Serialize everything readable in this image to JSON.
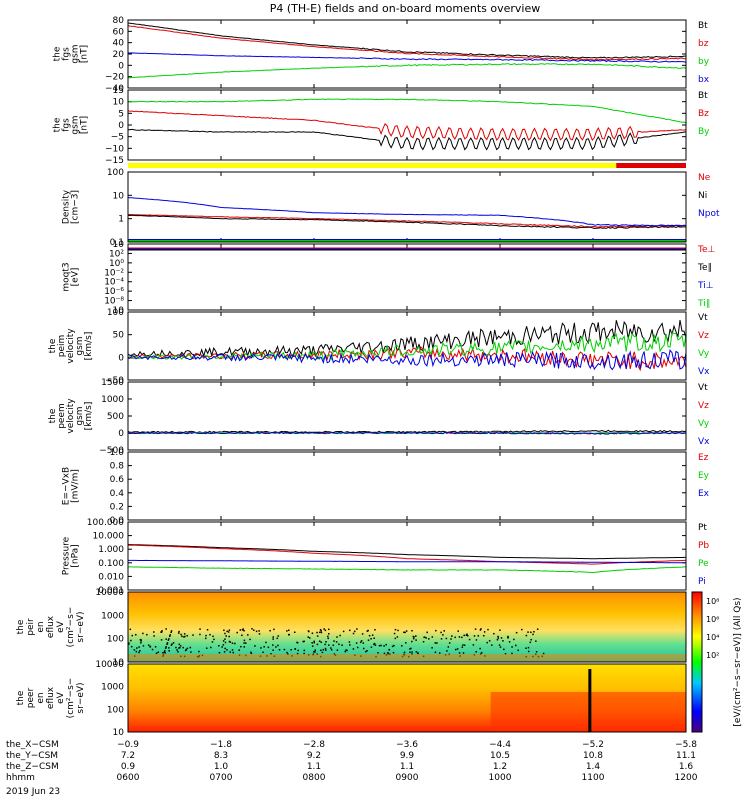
{
  "title": "P4 (TH-E) fields and on-board moments overview",
  "colors": {
    "black": "#000000",
    "red": "#e00000",
    "green": "#00d000",
    "blue": "#0000e0",
    "yellow": "#ffff00"
  },
  "panels": [
    {
      "id": "fgs-gsm-total",
      "ylabel": [
        "the",
        "fgs",
        "gsm",
        "[nT]"
      ],
      "ticks": [
        "80",
        "60",
        "40",
        "20",
        "0",
        "−20",
        "−40"
      ],
      "legend": [
        {
          "t": "Bt",
          "c": "black"
        },
        {
          "t": "bz",
          "c": "red"
        },
        {
          "t": "by",
          "c": "green"
        },
        {
          "t": "bx",
          "c": "blue"
        }
      ]
    },
    {
      "id": "fgs-gsm-angles",
      "ylabel": [
        "the",
        "fgs",
        "gsm",
        "[nT]"
      ],
      "ticks": [
        "15",
        "10",
        "5",
        "0",
        "−5",
        "−10",
        "−15"
      ],
      "legend": [
        {
          "t": "Bt",
          "c": "black"
        },
        {
          "t": "Bz",
          "c": "red"
        },
        {
          "t": "By",
          "c": "green"
        }
      ]
    },
    {
      "id": "density",
      "ylabel": [
        "Density",
        "[cm−3]"
      ],
      "ticks": [
        "100",
        "10",
        "1",
        "0.1"
      ],
      "legend": [
        {
          "t": "Ne",
          "c": "red"
        },
        {
          "t": "Ni",
          "c": "black"
        },
        {
          "t": "Npot",
          "c": "blue"
        }
      ]
    },
    {
      "id": "temperature",
      "ylabel": [
        "moqt3",
        "[eV]"
      ],
      "ticks": [
        "10",
        "10²",
        "10⁰",
        "10⁻²",
        "10⁻⁴",
        "10⁻⁶",
        "10⁻⁸",
        "10"
      ],
      "legend": [
        {
          "t": "Te⊥",
          "c": "red"
        },
        {
          "t": "Te∥",
          "c": "black"
        },
        {
          "t": "Ti⊥",
          "c": "blue"
        },
        {
          "t": "Ti∥",
          "c": "green"
        }
      ]
    },
    {
      "id": "peim-velocity",
      "ylabel": [
        "the",
        "peim",
        "velocity",
        "gsm",
        "[km/s]"
      ],
      "ticks": [
        "100",
        "50",
        "0",
        "−50"
      ],
      "legend": [
        {
          "t": "Vt",
          "c": "black"
        },
        {
          "t": "Vz",
          "c": "red"
        },
        {
          "t": "Vy",
          "c": "green"
        },
        {
          "t": "Vx",
          "c": "blue"
        }
      ]
    },
    {
      "id": "peem-velocity",
      "ylabel": [
        "the",
        "peem",
        "velocity",
        "gsm",
        "[km/s]"
      ],
      "ticks": [
        "1500",
        "1000",
        "500",
        "0",
        "−500"
      ],
      "legend": [
        {
          "t": "Vt",
          "c": "black"
        },
        {
          "t": "Vz",
          "c": "red"
        },
        {
          "t": "Vy",
          "c": "green"
        },
        {
          "t": "Vx",
          "c": "blue"
        }
      ]
    },
    {
      "id": "efield",
      "ylabel": [
        "E=−VxB",
        "[mV/m]"
      ],
      "ticks": [
        "1.0",
        "0.8",
        "0.6",
        "0.4",
        "0.2",
        "0.0"
      ],
      "legend": [
        {
          "t": "Ez",
          "c": "red"
        },
        {
          "t": "Ey",
          "c": "green"
        },
        {
          "t": "Ex",
          "c": "blue"
        }
      ]
    },
    {
      "id": "pressure",
      "ylabel": [
        "Pressure",
        "[nPa]"
      ],
      "ticks": [
        "100.000",
        "10.000",
        "1.000",
        "0.100",
        "0.010",
        "0.001"
      ],
      "legend": [
        {
          "t": "Pt",
          "c": "black"
        },
        {
          "t": "Pb",
          "c": "red"
        },
        {
          "t": "Pe",
          "c": "green"
        },
        {
          "t": "Pi",
          "c": "blue"
        }
      ]
    },
    {
      "id": "peir-spec",
      "ylabel": [
        "the",
        "peir",
        "en",
        "eflux",
        "eV",
        "(cm²−s−",
        "sr−eV)"
      ],
      "ticks": [
        "10000",
        "1000",
        "100",
        "10"
      ],
      "legend": []
    },
    {
      "id": "peer-spec",
      "ylabel": [
        "the",
        "peer",
        "en",
        "eflux",
        "eV",
        "(cm²−s−",
        "sr−eV)"
      ],
      "ticks": [
        "10000",
        "1000",
        "100",
        "10"
      ],
      "legend": []
    }
  ],
  "colorbar": {
    "label": "[eV/(cm²−s−sr−eV)] (All Qs)",
    "ticks_top": [
      "10⁸",
      "10⁶",
      "10⁴",
      "10²"
    ],
    "ticks_bottom": [
      "10⁶",
      "10⁴",
      "10²"
    ]
  },
  "xaxis": {
    "rows": [
      {
        "label": "the_X−CSM",
        "values": [
          "−0.9",
          "−1.8",
          "−2.8",
          "−3.6",
          "−4.4",
          "−5.2",
          "−5.8"
        ]
      },
      {
        "label": "the_Y−CSM",
        "values": [
          "7.2",
          "8.3",
          "9.2",
          "9.9",
          "10.5",
          "10.8",
          "11.1"
        ]
      },
      {
        "label": "the_Z−CSM",
        "values": [
          "0.9",
          "1.0",
          "1.1",
          "1.1",
          "1.2",
          "1.4",
          "1.6"
        ]
      },
      {
        "label": "hhmm",
        "values": [
          "0600",
          "0700",
          "0800",
          "0900",
          "1000",
          "1100",
          "1200"
        ]
      }
    ],
    "date": "2019 Jun 23"
  },
  "chart_data": {
    "type": "line",
    "title": "P4 (TH-E) fields and on-board moments overview",
    "x": [
      "0600",
      "0700",
      "0800",
      "0900",
      "1000",
      "1100",
      "1200"
    ],
    "xlabel": "hhmm",
    "panels": [
      {
        "name": "fgs gsm",
        "ylim": [
          -40,
          80
        ],
        "series": [
          {
            "name": "Bt",
            "values": [
              75,
              52,
              36,
              24,
              18,
              13,
              16
            ]
          },
          {
            "name": "bz",
            "values": [
              70,
              48,
              33,
              21,
              15,
              10,
              12
            ]
          },
          {
            "name": "by",
            "values": [
              -22,
              -12,
              -5,
              0,
              2,
              2,
              -5
            ]
          },
          {
            "name": "bx",
            "values": [
              22,
              17,
              14,
              11,
              10,
              8,
              6
            ]
          }
        ]
      },
      {
        "name": "fgs gsm",
        "ylim": [
          -15,
          15
        ],
        "series": [
          {
            "name": "Bt",
            "values": [
              -2,
              -3,
              -3,
              -8,
              -8,
              -8,
              -3
            ]
          },
          {
            "name": "Bz",
            "values": [
              6,
              4,
              2,
              -3,
              -4,
              -4,
              -2
            ]
          },
          {
            "name": "By",
            "values": [
              10,
              10,
              11,
              11,
              10,
              8,
              1
            ]
          }
        ]
      },
      {
        "name": "Density",
        "ylim": [
          0.1,
          100
        ],
        "series": [
          {
            "name": "Ne",
            "values": [
              1.5,
              1.2,
              1.0,
              0.8,
              0.6,
              0.45,
              0.5
            ]
          },
          {
            "name": "Ni",
            "values": [
              1.4,
              1.0,
              0.9,
              0.7,
              0.5,
              0.4,
              0.45
            ]
          },
          {
            "name": "Npot",
            "values": [
              8,
              3,
              1.8,
              1.5,
              1.4,
              0.55,
              0.5
            ]
          }
        ]
      },
      {
        "name": "peim velocity",
        "ylim": [
          -50,
          100
        ],
        "series": [
          {
            "name": "Vt",
            "values": [
              8,
              12,
              15,
              30,
              45,
              55,
              60
            ]
          },
          {
            "name": "Vz",
            "values": [
              2,
              3,
              5,
              10,
              5,
              -5,
              -10
            ]
          },
          {
            "name": "Vy",
            "values": [
              0,
              2,
              4,
              15,
              20,
              30,
              35
            ]
          },
          {
            "name": "Vx",
            "values": [
              0,
              0,
              -2,
              -5,
              -5,
              -8,
              -5
            ]
          }
        ]
      },
      {
        "name": "peem velocity",
        "ylim": [
          -500,
          1500
        ],
        "series": [
          {
            "name": "Vt",
            "values": [
              30,
              30,
              30,
              30,
              40,
              60,
              50
            ]
          },
          {
            "name": "Vz",
            "values": [
              0,
              0,
              0,
              0,
              0,
              -10,
              0
            ]
          },
          {
            "name": "Vy",
            "values": [
              0,
              0,
              0,
              0,
              0,
              0,
              0
            ]
          },
          {
            "name": "Vx",
            "values": [
              0,
              0,
              0,
              0,
              0,
              -20,
              0
            ]
          }
        ]
      },
      {
        "name": "Pressure",
        "ylim": [
          0.001,
          100
        ],
        "series": [
          {
            "name": "Pt",
            "values": [
              2.2,
              1.3,
              0.7,
              0.4,
              0.25,
              0.2,
              0.25
            ]
          },
          {
            "name": "Pb",
            "values": [
              2.0,
              1.1,
              0.5,
              0.2,
              0.12,
              0.08,
              0.15
            ]
          },
          {
            "name": "Pe",
            "values": [
              0.05,
              0.04,
              0.035,
              0.03,
              0.03,
              0.02,
              0.05
            ]
          },
          {
            "name": "Pi",
            "values": [
              0.15,
              0.14,
              0.13,
              0.12,
              0.12,
              0.11,
              0.1
            ]
          }
        ]
      }
    ]
  }
}
